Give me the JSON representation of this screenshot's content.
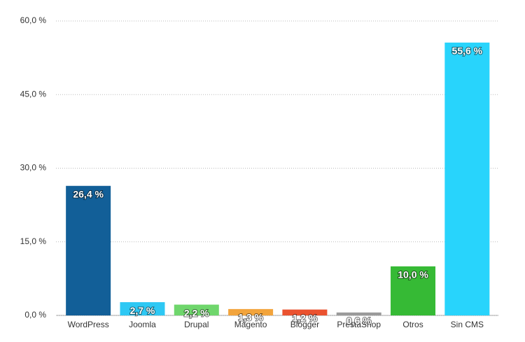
{
  "chart_data": {
    "type": "bar",
    "categories": [
      "WordPress",
      "Joomla",
      "Drupal",
      "Magento",
      "Blogger",
      "PrestaShop",
      "Otros",
      "Sin CMS"
    ],
    "values": [
      26.4,
      2.7,
      2.2,
      1.3,
      1.2,
      0.6,
      10.0,
      55.6
    ],
    "value_labels": [
      "26,4 %",
      "2,7 %",
      "2,2 %",
      "1,3 %",
      "1,2 %",
      "0,6 %",
      "10,0 %",
      "55,6 %"
    ],
    "colors": [
      "#125f98",
      "#2ec8f4",
      "#6fd66c",
      "#f2a43c",
      "#ea522f",
      "#9a9a9a",
      "#36ba35",
      "#28d4fc"
    ],
    "ylim": [
      0,
      60
    ],
    "yticks": [
      {
        "value": 0,
        "label": "0,0 %"
      },
      {
        "value": 15,
        "label": "15,0 %"
      },
      {
        "value": 30,
        "label": "30,0 %"
      },
      {
        "value": 45,
        "label": "45,0 %"
      },
      {
        "value": 60,
        "label": "60,0 %"
      }
    ],
    "grid": true
  }
}
